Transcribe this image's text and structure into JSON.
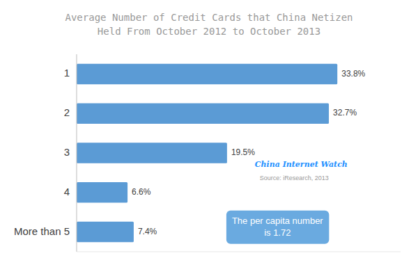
{
  "chart_data": {
    "type": "bar",
    "orientation": "horizontal",
    "title": "Average Number of Credit Cards that China Netizen\nHeld From October 2012 to October 2013",
    "categories": [
      "1",
      "2",
      "3",
      "4",
      "More than 5"
    ],
    "values": [
      33.8,
      32.7,
      19.5,
      6.6,
      7.4
    ],
    "value_labels": [
      "33.8%",
      "32.7%",
      "19.5%",
      "6.6%",
      "7.4%"
    ],
    "color": "#5B9BD5",
    "xlim": [
      0,
      42
    ],
    "xticks": [],
    "tick_labels": "y",
    "data_labels": true,
    "grid": false,
    "annotations": [
      "China Internet Watch",
      "Source: iResearch, 2013",
      "The per capita number\nis 1.72"
    ]
  }
}
